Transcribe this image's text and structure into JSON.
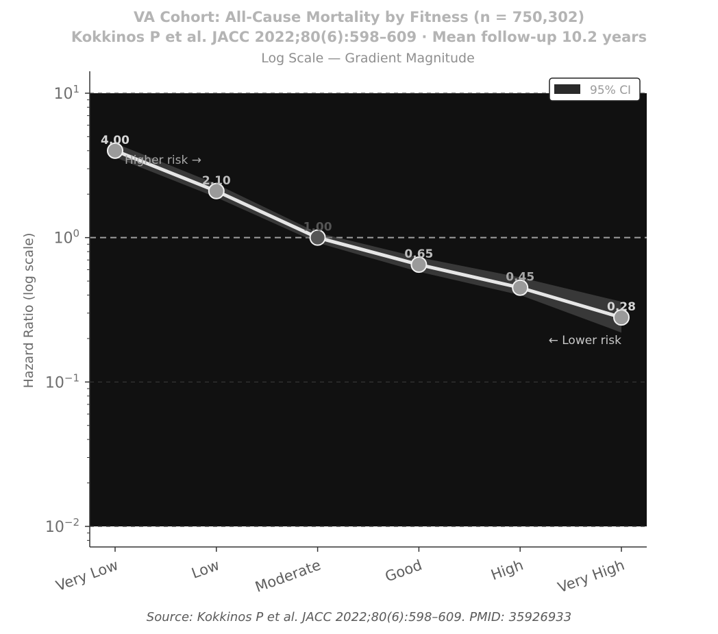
{
  "chart_data": {
    "type": "line",
    "title": "VA Cohort: All-Cause Mortality by Fitness (n = 750,302)",
    "subtitle_line2": "Kokkinos P et al. JACC 2022;80(6):598–609  ·  Mean follow-up 10.2 years",
    "subtitle_line3": "Log Scale — Gradient Magnitude",
    "ylabel": "Hazard Ratio (log scale)",
    "yscale": "log",
    "ylim": [
      0.01,
      10
    ],
    "y_tick_labels": [
      {
        "value": 10,
        "base": "10",
        "exp": "1"
      },
      {
        "value": 1,
        "base": "10",
        "exp": "0"
      },
      {
        "value": 0.1,
        "base": "10",
        "exp": "−1"
      },
      {
        "value": 0.01,
        "base": "10",
        "exp": "−2"
      }
    ],
    "categories": [
      "Very Low",
      "Low",
      "Moderate",
      "Good",
      "High",
      "Very High"
    ],
    "series": [
      {
        "values": [
          4.0,
          2.1,
          1.0,
          0.65,
          0.45,
          0.28
        ],
        "ci_lower": [
          3.6,
          1.9,
          0.92,
          0.58,
          0.4,
          0.22
        ],
        "ci_upper": [
          4.5,
          2.35,
          1.08,
          0.73,
          0.53,
          0.36
        ],
        "data_labels": [
          "4.00",
          "2.10",
          "1.00",
          "0.65",
          "0.45",
          "0.28"
        ]
      }
    ],
    "reference_line": 1.0,
    "annotations": [
      "Higher risk →",
      "← Lower risk"
    ],
    "legend": {
      "placement": "top-right",
      "entries": [
        "95% CI"
      ]
    },
    "grid": "horizontal dashed at decades",
    "colors": {
      "plot_background": "#111111",
      "line": "#e6e6e6",
      "ci_band": "#5a5a5a",
      "marker_fill": "#9a9a9a",
      "marker_stroke": "#f2f2f2",
      "reference_line": "#9a9a9a"
    },
    "source": "Source: Kokkinos P et al. JACC 2022;80(6):598–609. PMID: 35926933"
  }
}
